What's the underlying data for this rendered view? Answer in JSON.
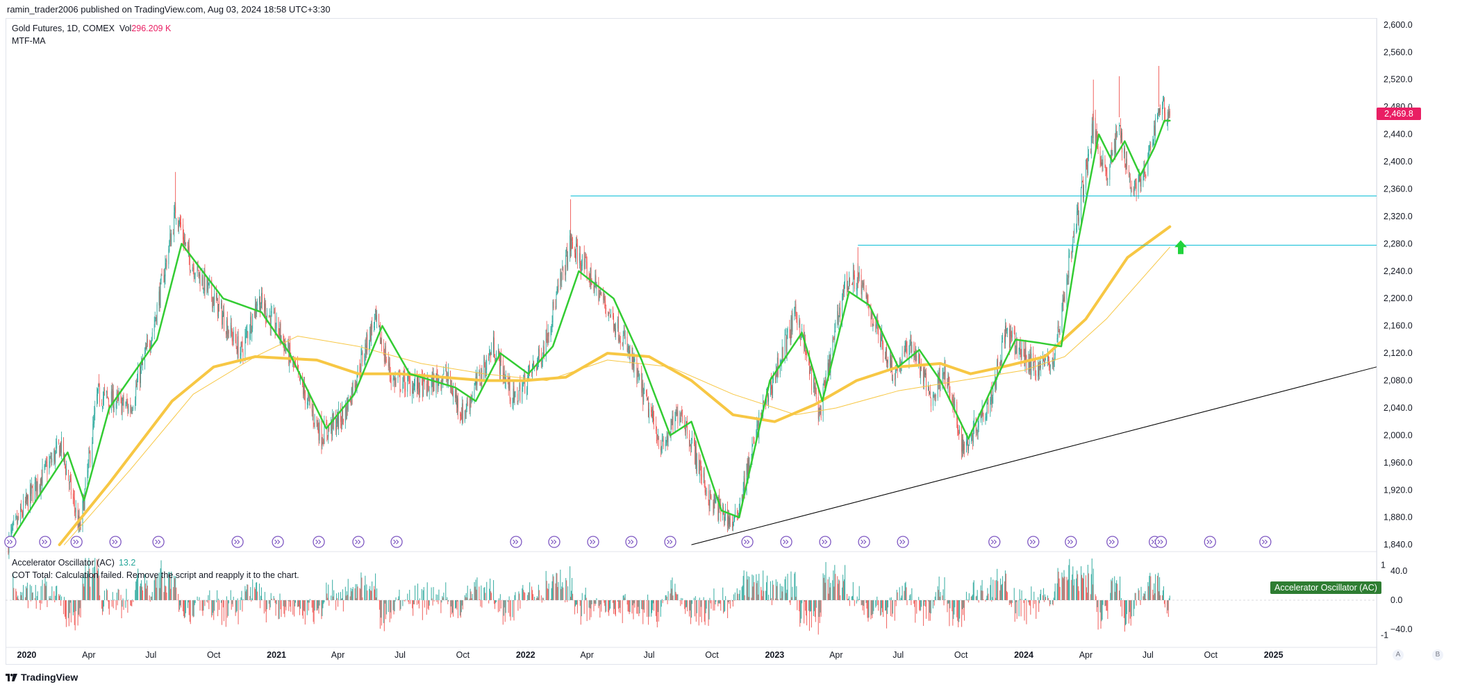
{
  "publisher": "ramin_trader2006 published on TradingView.com, Aug 03, 2024 18:58 UTC+3:30",
  "legend": {
    "symbol": "Gold Futures, 1D, COMEX",
    "vol_label": "Vol",
    "vol_value": "296.209 K",
    "ma_name": "MTF-MA",
    "ac_name": "Accelerator Oscillator (AC)",
    "ac_value": "13.2",
    "cot_message": "COT Total: Calculation failed. Remove the script and reapply it to the chart."
  },
  "price_badge": "2,469.8",
  "ac_badge": "Accelerator Oscillator (AC)",
  "footer": {
    "brand": "TradingView"
  },
  "corner_buttons": [
    "A",
    "B"
  ],
  "colors": {
    "up": "#26a69a",
    "down": "#ef5350",
    "fast_ma": "#33cc33",
    "slow_ma": "#f7c744",
    "level": "#00bcd4",
    "trend": "#000000",
    "arrow": "#21d33c",
    "badge": "#e91e63",
    "marker": "#7e57c2"
  },
  "chart_data": {
    "type": "candlestick",
    "x_axis": {
      "range": [
        "2019-12-01",
        "2025-06-01"
      ],
      "ticks": [
        {
          "date": "2020-01-01",
          "label": "2020",
          "bold": true
        },
        {
          "date": "2020-04-01",
          "label": "Apr"
        },
        {
          "date": "2020-07-01",
          "label": "Jul"
        },
        {
          "date": "2020-10-01",
          "label": "Oct"
        },
        {
          "date": "2021-01-01",
          "label": "2021",
          "bold": true
        },
        {
          "date": "2021-04-01",
          "label": "Apr"
        },
        {
          "date": "2021-07-01",
          "label": "Jul"
        },
        {
          "date": "2021-10-01",
          "label": "Oct"
        },
        {
          "date": "2022-01-01",
          "label": "2022",
          "bold": true
        },
        {
          "date": "2022-04-01",
          "label": "Apr"
        },
        {
          "date": "2022-07-01",
          "label": "Jul"
        },
        {
          "date": "2022-10-01",
          "label": "Oct"
        },
        {
          "date": "2023-01-01",
          "label": "2023",
          "bold": true
        },
        {
          "date": "2023-04-01",
          "label": "Apr"
        },
        {
          "date": "2023-07-01",
          "label": "Jul"
        },
        {
          "date": "2023-10-01",
          "label": "Oct"
        },
        {
          "date": "2024-01-01",
          "label": "2024",
          "bold": true
        },
        {
          "date": "2024-04-01",
          "label": "Apr"
        },
        {
          "date": "2024-07-01",
          "label": "Jul"
        },
        {
          "date": "2024-10-01",
          "label": "Oct"
        },
        {
          "date": "2025-01-01",
          "label": "2025",
          "bold": true
        }
      ]
    },
    "price_axis": {
      "range": [
        1830,
        2610
      ],
      "ticks": [
        "2,600.0",
        "2,560.0",
        "2,520.0",
        "2,480.0",
        "2,440.0",
        "2,400.0",
        "2,360.0",
        "2,320.0",
        "2,280.0",
        "2,240.0",
        "2,200.0",
        "2,160.0",
        "2,120.0",
        "2,080.0",
        "2,040.0",
        "2,000.0",
        "1,960.0",
        "1,920.0",
        "1,880.0",
        "1,840.0"
      ],
      "tick_values": [
        2600,
        2560,
        2520,
        2480,
        2440,
        2400,
        2360,
        2320,
        2280,
        2240,
        2200,
        2160,
        2120,
        2080,
        2040,
        2000,
        1960,
        1920,
        1880,
        1840
      ],
      "last_price": 2469.8
    },
    "price_path": [
      [
        "2019-12-05",
        1845
      ],
      [
        "2020-01-08",
        1915
      ],
      [
        "2020-02-20",
        1985
      ],
      [
        "2020-03-19",
        1860
      ],
      [
        "2020-04-14",
        2060
      ],
      [
        "2020-06-01",
        2040
      ],
      [
        "2020-07-05",
        2160
      ],
      [
        "2020-08-07",
        2330
      ],
      [
        "2020-08-25",
        2260
      ],
      [
        "2020-10-01",
        2200
      ],
      [
        "2020-11-10",
        2120
      ],
      [
        "2020-12-05",
        2200
      ],
      [
        "2021-01-06",
        2150
      ],
      [
        "2021-03-08",
        2000
      ],
      [
        "2021-04-10",
        2030
      ],
      [
        "2021-05-25",
        2170
      ],
      [
        "2021-06-20",
        2080
      ],
      [
        "2021-08-10",
        2070
      ],
      [
        "2021-09-05",
        2090
      ],
      [
        "2021-10-01",
        2030
      ],
      [
        "2021-11-15",
        2130
      ],
      [
        "2021-12-15",
        2050
      ],
      [
        "2022-01-25",
        2120
      ],
      [
        "2022-03-08",
        2280
      ],
      [
        "2022-04-18",
        2210
      ],
      [
        "2022-05-25",
        2140
      ],
      [
        "2022-07-21",
        1980
      ],
      [
        "2022-08-16",
        2040
      ],
      [
        "2022-09-28",
        1905
      ],
      [
        "2022-11-03",
        1870
      ],
      [
        "2022-12-12",
        2030
      ],
      [
        "2023-02-02",
        2180
      ],
      [
        "2023-03-08",
        2030
      ],
      [
        "2023-04-13",
        2220
      ],
      [
        "2023-05-03",
        2230
      ],
      [
        "2023-06-25",
        2090
      ],
      [
        "2023-07-20",
        2135
      ],
      [
        "2023-08-20",
        2050
      ],
      [
        "2023-09-05",
        2100
      ],
      [
        "2023-10-05",
        1980
      ],
      [
        "2023-11-15",
        2060
      ],
      [
        "2023-12-05",
        2150
      ],
      [
        "2024-01-15",
        2100
      ],
      [
        "2024-02-14",
        2110
      ],
      [
        "2024-03-08",
        2255
      ],
      [
        "2024-04-12",
        2450
      ],
      [
        "2024-05-02",
        2380
      ],
      [
        "2024-05-20",
        2450
      ],
      [
        "2024-06-07",
        2360
      ],
      [
        "2024-06-27",
        2380
      ],
      [
        "2024-07-17",
        2480
      ],
      [
        "2024-08-02",
        2469.8
      ]
    ],
    "ma_fast": [
      [
        "2019-12-05",
        1840
      ],
      [
        "2020-01-15",
        1905
      ],
      [
        "2020-03-01",
        1975
      ],
      [
        "2020-03-25",
        1905
      ],
      [
        "2020-05-01",
        2040
      ],
      [
        "2020-07-10",
        2140
      ],
      [
        "2020-08-15",
        2280
      ],
      [
        "2020-10-15",
        2200
      ],
      [
        "2020-12-10",
        2180
      ],
      [
        "2021-01-20",
        2120
      ],
      [
        "2021-03-15",
        2010
      ],
      [
        "2021-04-25",
        2060
      ],
      [
        "2021-06-05",
        2160
      ],
      [
        "2021-07-15",
        2090
      ],
      [
        "2021-09-20",
        2070
      ],
      [
        "2021-10-20",
        2050
      ],
      [
        "2021-11-25",
        2120
      ],
      [
        "2022-01-05",
        2090
      ],
      [
        "2022-02-10",
        2130
      ],
      [
        "2022-03-20",
        2240
      ],
      [
        "2022-05-10",
        2200
      ],
      [
        "2022-06-20",
        2110
      ],
      [
        "2022-08-01",
        2000
      ],
      [
        "2022-09-01",
        2020
      ],
      [
        "2022-10-15",
        1890
      ],
      [
        "2022-11-10",
        1880
      ],
      [
        "2022-12-25",
        2080
      ],
      [
        "2023-02-10",
        2150
      ],
      [
        "2023-03-12",
        2050
      ],
      [
        "2023-04-20",
        2210
      ],
      [
        "2023-05-20",
        2190
      ],
      [
        "2023-07-01",
        2100
      ],
      [
        "2023-08-01",
        2125
      ],
      [
        "2023-09-01",
        2080
      ],
      [
        "2023-10-12",
        1995
      ],
      [
        "2023-11-25",
        2090
      ],
      [
        "2023-12-20",
        2140
      ],
      [
        "2024-01-25",
        2135
      ],
      [
        "2024-02-25",
        2130
      ],
      [
        "2024-03-20",
        2280
      ],
      [
        "2024-04-20",
        2440
      ],
      [
        "2024-05-10",
        2400
      ],
      [
        "2024-05-28",
        2430
      ],
      [
        "2024-06-20",
        2380
      ],
      [
        "2024-07-10",
        2420
      ],
      [
        "2024-07-25",
        2460
      ],
      [
        "2024-08-02",
        2460
      ]
    ],
    "ma_slow_thick": [
      [
        "2020-02-18",
        1840
      ],
      [
        "2020-05-01",
        1930
      ],
      [
        "2020-08-01",
        2050
      ],
      [
        "2020-10-01",
        2100
      ],
      [
        "2020-12-01",
        2115
      ],
      [
        "2021-03-01",
        2110
      ],
      [
        "2021-05-01",
        2090
      ],
      [
        "2021-07-01",
        2090
      ],
      [
        "2021-09-01",
        2085
      ],
      [
        "2021-11-01",
        2080
      ],
      [
        "2022-01-01",
        2080
      ],
      [
        "2022-03-01",
        2085
      ],
      [
        "2022-05-01",
        2120
      ],
      [
        "2022-07-01",
        2115
      ],
      [
        "2022-09-01",
        2080
      ],
      [
        "2022-11-01",
        2030
      ],
      [
        "2023-01-01",
        2020
      ],
      [
        "2023-03-01",
        2045
      ],
      [
        "2023-05-01",
        2080
      ],
      [
        "2023-07-01",
        2100
      ],
      [
        "2023-09-01",
        2105
      ],
      [
        "2023-10-15",
        2090
      ],
      [
        "2023-12-01",
        2100
      ],
      [
        "2024-02-01",
        2115
      ],
      [
        "2024-04-01",
        2170
      ],
      [
        "2024-06-01",
        2260
      ],
      [
        "2024-08-02",
        2305
      ]
    ],
    "ma_slow_thin": [
      [
        "2020-02-25",
        1840
      ],
      [
        "2020-06-01",
        1950
      ],
      [
        "2020-09-01",
        2060
      ],
      [
        "2020-12-01",
        2115
      ],
      [
        "2021-02-01",
        2145
      ],
      [
        "2021-05-01",
        2130
      ],
      [
        "2021-08-01",
        2105
      ],
      [
        "2021-11-01",
        2090
      ],
      [
        "2022-02-01",
        2080
      ],
      [
        "2022-05-01",
        2110
      ],
      [
        "2022-08-01",
        2100
      ],
      [
        "2022-11-01",
        2060
      ],
      [
        "2023-02-01",
        2030
      ],
      [
        "2023-04-01",
        2040
      ],
      [
        "2023-07-01",
        2065
      ],
      [
        "2023-10-01",
        2080
      ],
      [
        "2024-01-01",
        2095
      ],
      [
        "2024-03-01",
        2115
      ],
      [
        "2024-05-01",
        2170
      ],
      [
        "2024-08-02",
        2275
      ]
    ],
    "horizontal_levels": [
      {
        "from": "2022-03-08",
        "price": 2350
      },
      {
        "from": "2023-05-03",
        "price": 2278
      }
    ],
    "trendline": {
      "from": [
        "2022-09-01",
        1840
      ],
      "to": [
        "2025-06-01",
        2100
      ]
    },
    "arrow_marker": {
      "date": "2024-08-18",
      "price": 2275,
      "direction": "up"
    },
    "event_markers": [
      "2019-12-08",
      "2020-01-28",
      "2020-03-14",
      "2020-05-10",
      "2020-07-12",
      "2020-11-05",
      "2021-01-03",
      "2021-03-04",
      "2021-05-01",
      "2021-06-26",
      "2021-12-18",
      "2022-02-12",
      "2022-04-10",
      "2022-06-05",
      "2022-08-01",
      "2022-11-22",
      "2023-01-18",
      "2023-03-16",
      "2023-05-12",
      "2023-07-08",
      "2023-11-19",
      "2024-01-15",
      "2024-03-10",
      "2024-05-10",
      "2024-07-11",
      "2024-07-20",
      "2024-09-30",
      "2024-12-20"
    ],
    "oscillator": {
      "range": [
        -62,
        62
      ],
      "ticks": [
        "40.0",
        "0.0",
        "−40.0"
      ],
      "tick_values": [
        40,
        0,
        -40
      ],
      "side_labels": [
        "1",
        "-1"
      ],
      "current": 13.2,
      "end_date": "2024-08-02"
    }
  }
}
